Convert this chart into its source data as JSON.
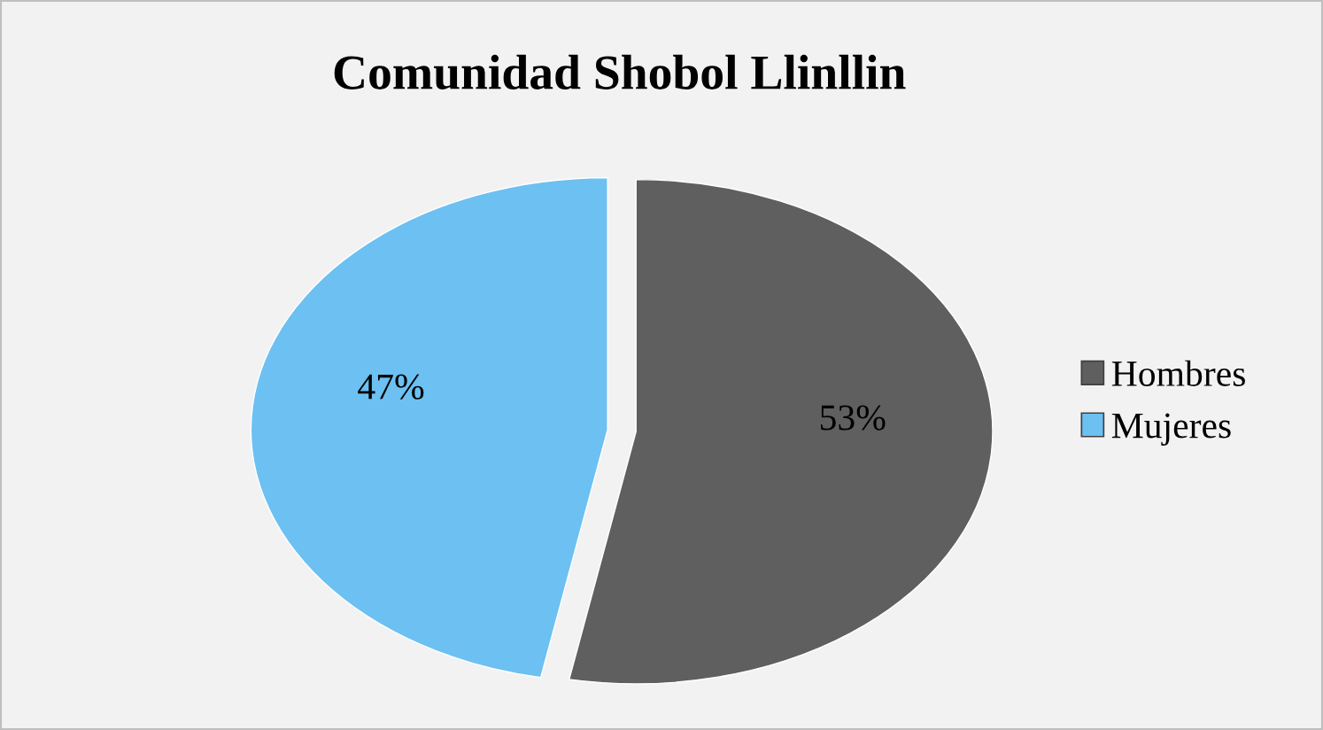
{
  "chart_data": {
    "type": "pie",
    "title": "Comunidad Shobol Llinllin",
    "categories": [
      "Hombres",
      "Mujeres"
    ],
    "values": [
      53,
      47
    ],
    "value_labels": [
      "53%",
      "47%"
    ],
    "colors": [
      "#5f5f5f",
      "#6cc0f2"
    ],
    "legend": "right"
  }
}
